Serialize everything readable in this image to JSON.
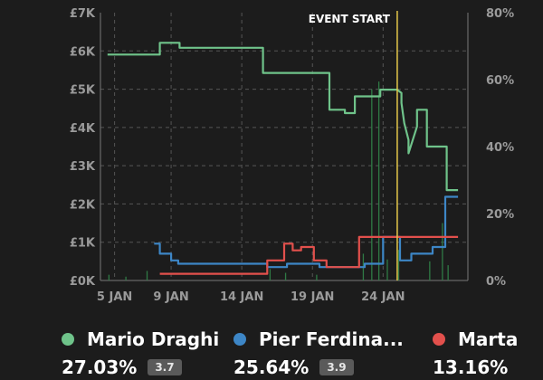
{
  "chart_data": {
    "type": "line",
    "x_tick_labels": [
      "5 JAN",
      "9 JAN",
      "14 JAN",
      "19 JAN",
      "24 JAN"
    ],
    "y_left_tick_labels": [
      "£0K",
      "£1K",
      "£2K",
      "£3K",
      "£4K",
      "£5K",
      "£6K",
      "£7K"
    ],
    "y_right_tick_labels": [
      "0%",
      "20%",
      "40%",
      "60%",
      "80%"
    ],
    "event_label": "EVENT START",
    "event_x": 25,
    "xlim": [
      4,
      30
    ],
    "ylim_right": [
      0,
      80
    ],
    "ylim_left": [
      0,
      7000
    ],
    "grid": true,
    "series": [
      {
        "name": "Mario Draghi",
        "color": "#6fc38a",
        "x": [
          4.5,
          8.2,
          8.2,
          9.6,
          9.6,
          14.8,
          15.5,
          15.5,
          20.2,
          20.2,
          21.3,
          21.3,
          22.0,
          22.0,
          23.8,
          23.8,
          25.0,
          25.3,
          25.3,
          25.5,
          25.8,
          25.8,
          26.4,
          26.4,
          27.1,
          27.1,
          28.5,
          28.5,
          29.3
        ],
        "y": [
          67.5,
          67.5,
          71,
          71,
          69.5,
          69.5,
          69.5,
          62,
          62,
          51,
          51,
          50,
          50,
          55,
          55,
          57,
          57,
          56,
          53,
          47,
          42,
          38,
          46,
          51,
          51,
          40,
          40,
          27,
          27
        ],
        "hidden_extra": []
      },
      {
        "name": "Pier Ferdina...",
        "color": "#3d86c6",
        "x": [
          7.8,
          8.2,
          8.2,
          9.0,
          9.0,
          9.5,
          9.5,
          15.8,
          15.8,
          17.2,
          17.2,
          19.5,
          19.5,
          22.7,
          22.7,
          24.0,
          24.0,
          25.2,
          25.2,
          26.0,
          26.0,
          27.5,
          27.5,
          28.4,
          28.4,
          29.3
        ],
        "y": [
          11,
          11,
          8,
          8,
          6,
          6,
          5,
          5,
          4,
          4,
          5,
          5,
          4,
          4,
          5,
          5,
          13,
          13,
          6,
          6,
          8,
          8,
          10,
          10,
          25,
          25
        ]
      },
      {
        "name": "Marta",
        "color": "#e2504c",
        "x": [
          8.2,
          15.8,
          15.8,
          17.0,
          17.0,
          17.6,
          17.6,
          18.2,
          18.2,
          19.1,
          19.1,
          20.0,
          20.0,
          22.3,
          22.3,
          29.3
        ],
        "y": [
          2,
          2,
          6,
          6,
          11,
          11,
          9,
          9,
          10,
          10,
          6,
          6,
          4,
          4,
          13,
          13
        ]
      }
    ],
    "volume_bars": [
      {
        "x": 4.6,
        "v": 150
      },
      {
        "x": 5.8,
        "v": 100
      },
      {
        "x": 7.3,
        "v": 250
      },
      {
        "x": 16.0,
        "v": 300
      },
      {
        "x": 17.1,
        "v": 200
      },
      {
        "x": 19.3,
        "v": 150
      },
      {
        "x": 22.6,
        "v": 700
      },
      {
        "x": 23.2,
        "v": 5000
      },
      {
        "x": 23.7,
        "v": 5200
      },
      {
        "x": 24.3,
        "v": 550
      },
      {
        "x": 25.1,
        "v": 800
      },
      {
        "x": 27.3,
        "v": 500
      },
      {
        "x": 28.2,
        "v": 1500
      },
      {
        "x": 28.6,
        "v": 400
      }
    ]
  },
  "legend": [
    {
      "name": "Mario Draghi",
      "color": "#6fc38a",
      "percent": "27.03%",
      "odds": "3.7"
    },
    {
      "name": "Pier Ferdina...",
      "color": "#3d86c6",
      "percent": "25.64%",
      "odds": "3.9"
    },
    {
      "name": "Marta",
      "color": "#e2504c",
      "percent": "13.16%",
      "odds": ""
    }
  ],
  "colors": {
    "background": "#1c1c1c",
    "grid": "#555555",
    "axis_text": "#9a9a9a",
    "event_line": "#e6c84a"
  }
}
